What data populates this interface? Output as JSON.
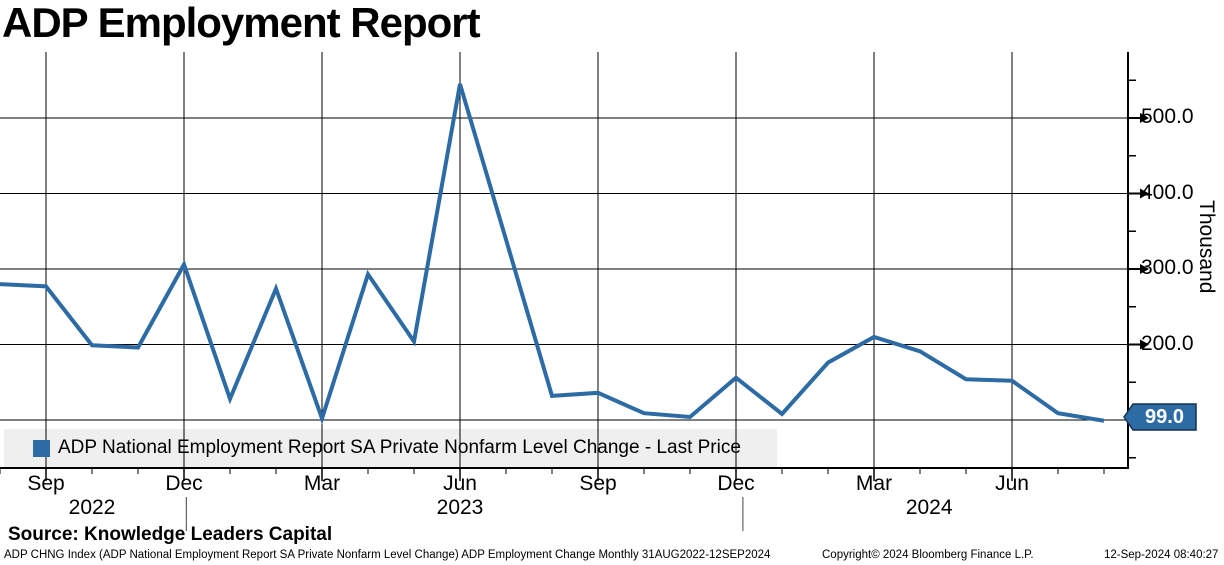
{
  "page": {
    "title": "ADP Employment Report",
    "source_line": "Source: Knowledge Leaders Capital",
    "footer": {
      "left": "ADP CHNG Index (ADP National Employment Report SA Private Nonfarm Level Change) ADP Employment Change  Monthly 31AUG2022-12SEP2024",
      "center": "Copyright© 2024 Bloomberg Finance L.P.",
      "right": "12-Sep-2024 08:40:27"
    }
  },
  "legend": {
    "swatch_color": "#2d6ba4",
    "label": "ADP National Employment Report SA Private Nonfarm Level Change - Last Price"
  },
  "chart_data": {
    "type": "line",
    "title": "ADP Employment Report",
    "xlabel": "",
    "ylabel": "Thousand",
    "ylim": [
      36,
      577
    ],
    "grid": true,
    "legend_position": "bottom-left",
    "last_price": "99.0",
    "last_price_color": "#2d6ba4",
    "x": [
      "Aug 2022",
      "Sep 2022",
      "Oct 2022",
      "Nov 2022",
      "Dec 2022",
      "Jan 2023",
      "Feb 2023",
      "Mar 2023",
      "Apr 2023",
      "May 2023",
      "Jun 2023",
      "Jul 2023",
      "Aug 2023",
      "Sep 2023",
      "Oct 2023",
      "Nov 2023",
      "Dec 2023",
      "Jan 2024",
      "Feb 2024",
      "Mar 2024",
      "Apr 2024",
      "May 2024",
      "Jun 2024",
      "Jul 2024",
      "Aug 2024"
    ],
    "series": [
      {
        "name": "ADP National Employment Report SA Private Nonfarm Level Change - Last Price",
        "color": "#2d6ba4",
        "values": [
          280,
          277,
          199,
          196,
          306,
          128,
          274,
          102,
          293,
          204,
          545,
          339,
          132,
          136,
          109,
          104,
          156,
          108,
          176,
          210,
          191,
          154,
          152,
          109,
          99
        ]
      }
    ],
    "y_axis": {
      "side": "right",
      "unit": "Thousand",
      "major_tick_labels": [
        "500.0",
        "400.0",
        "300.0",
        "200.0"
      ],
      "major_tick_values": [
        500,
        400,
        300,
        200
      ],
      "minor_tick_values": [
        550,
        450,
        350,
        250,
        150,
        50
      ],
      "gridline_values": [
        500,
        400,
        300,
        200,
        100
      ]
    },
    "x_axis": {
      "quarter_labels": [
        {
          "label": "Sep",
          "month_index": 1
        },
        {
          "label": "Dec",
          "month_index": 4
        },
        {
          "label": "Mar",
          "month_index": 7
        },
        {
          "label": "Jun",
          "month_index": 10
        },
        {
          "label": "Sep",
          "month_index": 13
        },
        {
          "label": "Dec",
          "month_index": 16
        },
        {
          "label": "Mar",
          "month_index": 19
        },
        {
          "label": "Jun",
          "month_index": 22
        }
      ],
      "year_labels": [
        {
          "label": "2022",
          "center_index": 2.0
        },
        {
          "label": "2023",
          "center_index": 10.0
        },
        {
          "label": "2024",
          "center_index": 20.2
        }
      ],
      "year_separator_indices": [
        4.05,
        16.15
      ]
    }
  }
}
